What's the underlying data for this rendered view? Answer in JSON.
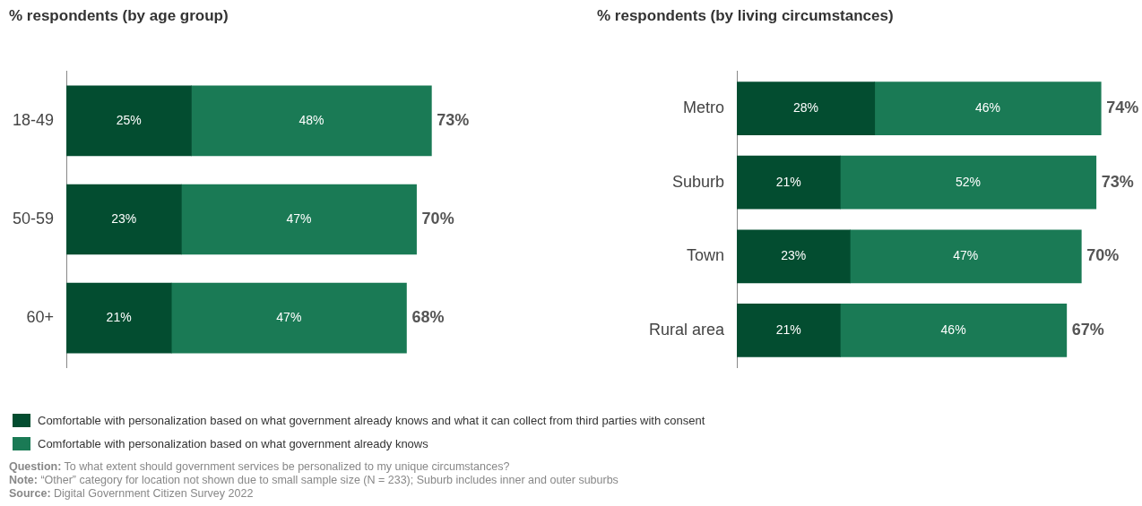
{
  "chart_data": [
    {
      "type": "bar",
      "orientation": "horizontal",
      "stacked": true,
      "title": "% respondents (by age group)",
      "categories": [
        "18-49",
        "50-59",
        "60+"
      ],
      "series": [
        {
          "name": "Comfortable with personalization based on what government already knows and what it can collect from third parties with consent",
          "color": "#034d30",
          "values": [
            25,
            23,
            21
          ],
          "value_labels": [
            "25%",
            "23%",
            "21%"
          ]
        },
        {
          "name": "Comfortable with personalization based on what government already knows",
          "color": "#1a7a55",
          "values": [
            48,
            47,
            47
          ],
          "value_labels": [
            "48%",
            "47%",
            "47%"
          ]
        }
      ],
      "totals": [
        "73%",
        "70%",
        "68%"
      ],
      "tick_labels": "y",
      "legend": "bottom",
      "annotations": [
        "Question: To what extent should government services be personalized to my unique circumstances?",
        "Note: “Other” category for location not shown due to small sample size (N = 233); Suburb includes inner and outer suburbs",
        "Source: Digital Government Citizen Survey 2022"
      ]
    },
    {
      "type": "bar",
      "orientation": "horizontal",
      "stacked": true,
      "title": "% respondents (by living circumstances)",
      "categories": [
        "Metro",
        "Suburb",
        "Town",
        "Rural area"
      ],
      "series": [
        {
          "color": "#034d30",
          "values": [
            28,
            21,
            23,
            21
          ],
          "value_labels": [
            "28%",
            "21%",
            "23%",
            "21%"
          ]
        },
        {
          "color": "#1a7a55",
          "values": [
            46,
            52,
            47,
            46
          ],
          "value_labels": [
            "46%",
            "52%",
            "47%",
            "46%"
          ]
        }
      ],
      "totals": [
        "74%",
        "73%",
        "70%",
        "67%"
      ],
      "tick_labels": "y"
    }
  ]
}
